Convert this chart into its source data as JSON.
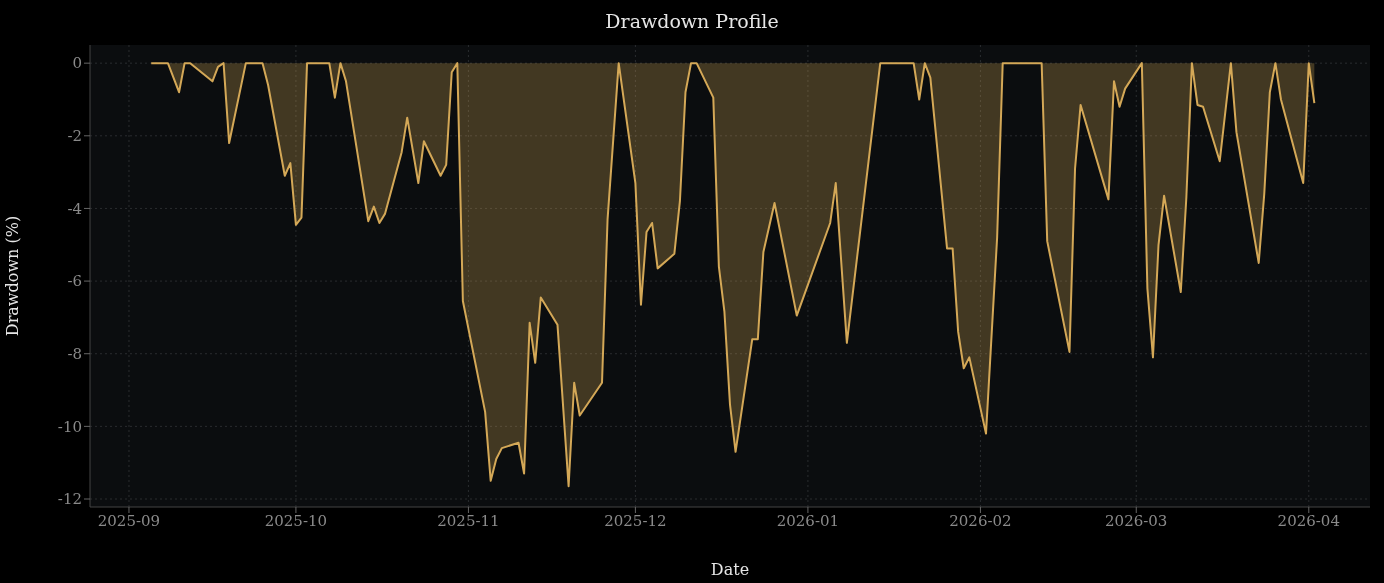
{
  "chart_data": {
    "type": "area",
    "title": "Drawdown Profile",
    "xlabel": "Date",
    "ylabel": "Drawdown (%)",
    "color": "#d4a857",
    "grid": true,
    "x": [
      "2025-09-05",
      "2025-09-08",
      "2025-09-10",
      "2025-09-11",
      "2025-09-12",
      "2025-09-16",
      "2025-09-17",
      "2025-09-18",
      "2025-09-19",
      "2025-09-22",
      "2025-09-25",
      "2025-09-26",
      "2025-09-29",
      "2025-09-30",
      "2025-10-01",
      "2025-10-02",
      "2025-10-03",
      "2025-10-07",
      "2025-10-08",
      "2025-10-09",
      "2025-10-10",
      "2025-10-14",
      "2025-10-15",
      "2025-10-16",
      "2025-10-17",
      "2025-10-20",
      "2025-10-21",
      "2025-10-23",
      "2025-10-24",
      "2025-10-27",
      "2025-10-28",
      "2025-10-29",
      "2025-10-30",
      "2025-10-31",
      "2025-11-04",
      "2025-11-05",
      "2025-11-06",
      "2025-11-07",
      "2025-11-10",
      "2025-11-11",
      "2025-11-12",
      "2025-11-13",
      "2025-11-14",
      "2025-11-17",
      "2025-11-19",
      "2025-11-20",
      "2025-11-21",
      "2025-11-25",
      "2025-11-26",
      "2025-11-28",
      "2025-12-01",
      "2025-12-02",
      "2025-12-03",
      "2025-12-04",
      "2025-12-05",
      "2025-12-08",
      "2025-12-09",
      "2025-12-10",
      "2025-12-11",
      "2025-12-12",
      "2025-12-15",
      "2025-12-16",
      "2025-12-17",
      "2025-12-18",
      "2025-12-19",
      "2025-12-22",
      "2025-12-23",
      "2025-12-24",
      "2025-12-26",
      "2025-12-30",
      "2026-01-05",
      "2026-01-06",
      "2026-01-08",
      "2026-01-14",
      "2026-01-20",
      "2026-01-21",
      "2026-01-22",
      "2026-01-23",
      "2026-01-26",
      "2026-01-27",
      "2026-01-28",
      "2026-01-29",
      "2026-01-30",
      "2026-02-02",
      "2026-02-04",
      "2026-02-05",
      "2026-02-12",
      "2026-02-13",
      "2026-02-17",
      "2026-02-18",
      "2026-02-19",
      "2026-02-24",
      "2026-02-25",
      "2026-02-26",
      "2026-02-27",
      "2026-03-02",
      "2026-03-03",
      "2026-03-04",
      "2026-03-05",
      "2026-03-06",
      "2026-03-09",
      "2026-03-10",
      "2026-03-11",
      "2026-03-12",
      "2026-03-13",
      "2026-03-16",
      "2026-03-18",
      "2026-03-19",
      "2026-03-23",
      "2026-03-24",
      "2026-03-25",
      "2026-03-26",
      "2026-03-27",
      "2026-03-31",
      "2026-04-01",
      "2026-04-02"
    ],
    "values": [
      0,
      0,
      -0.8,
      0,
      0,
      -0.5,
      -0.1,
      0,
      -2.2,
      0,
      0,
      -0.6,
      -3.1,
      -2.75,
      -4.45,
      -4.25,
      0,
      0,
      -0.95,
      0,
      -0.5,
      -4.35,
      -3.95,
      -4.4,
      -4.15,
      -2.45,
      -1.5,
      -3.3,
      -2.15,
      -3.1,
      -2.8,
      -0.25,
      0,
      -6.55,
      -9.6,
      -11.5,
      -10.9,
      -10.6,
      -10.45,
      -11.3,
      -7.15,
      -8.25,
      -6.45,
      -7.2,
      -11.65,
      -8.8,
      -9.7,
      -8.8,
      -4.3,
      0,
      -3.3,
      -6.65,
      -4.65,
      -4.4,
      -5.65,
      -5.25,
      -3.8,
      -0.8,
      0,
      0,
      -0.95,
      -5.6,
      -6.85,
      -9.4,
      -10.7,
      -7.6,
      -7.6,
      -5.2,
      -3.85,
      -6.95,
      -4.4,
      -3.3,
      -7.7,
      0,
      0,
      -1.0,
      0,
      -0.4,
      -5.1,
      -5.1,
      -7.4,
      -8.4,
      -8.1,
      -10.2,
      -4.8,
      0,
      0,
      -4.9,
      -7.95,
      -2.9,
      -1.15,
      -3.75,
      -0.5,
      -1.2,
      -0.7,
      0,
      -6.2,
      -8.1,
      -5.0,
      -3.65,
      -6.3,
      -3.7,
      0,
      -1.15,
      -1.2,
      -2.7,
      0,
      -1.9,
      -5.5,
      -3.6,
      -0.8,
      0,
      -1.0,
      -3.3,
      0,
      -1.1
    ],
    "xlim": [
      "2025-08-25",
      "2026-04-12"
    ],
    "xticks": [
      "2025-09",
      "2025-10",
      "2025-11",
      "2025-12",
      "2026-01",
      "2026-02",
      "2026-03",
      "2026-04"
    ],
    "ylim": [
      -12.22,
      0.5
    ],
    "yticks": [
      0,
      -2,
      -4,
      -6,
      -8,
      -10,
      -12
    ]
  }
}
